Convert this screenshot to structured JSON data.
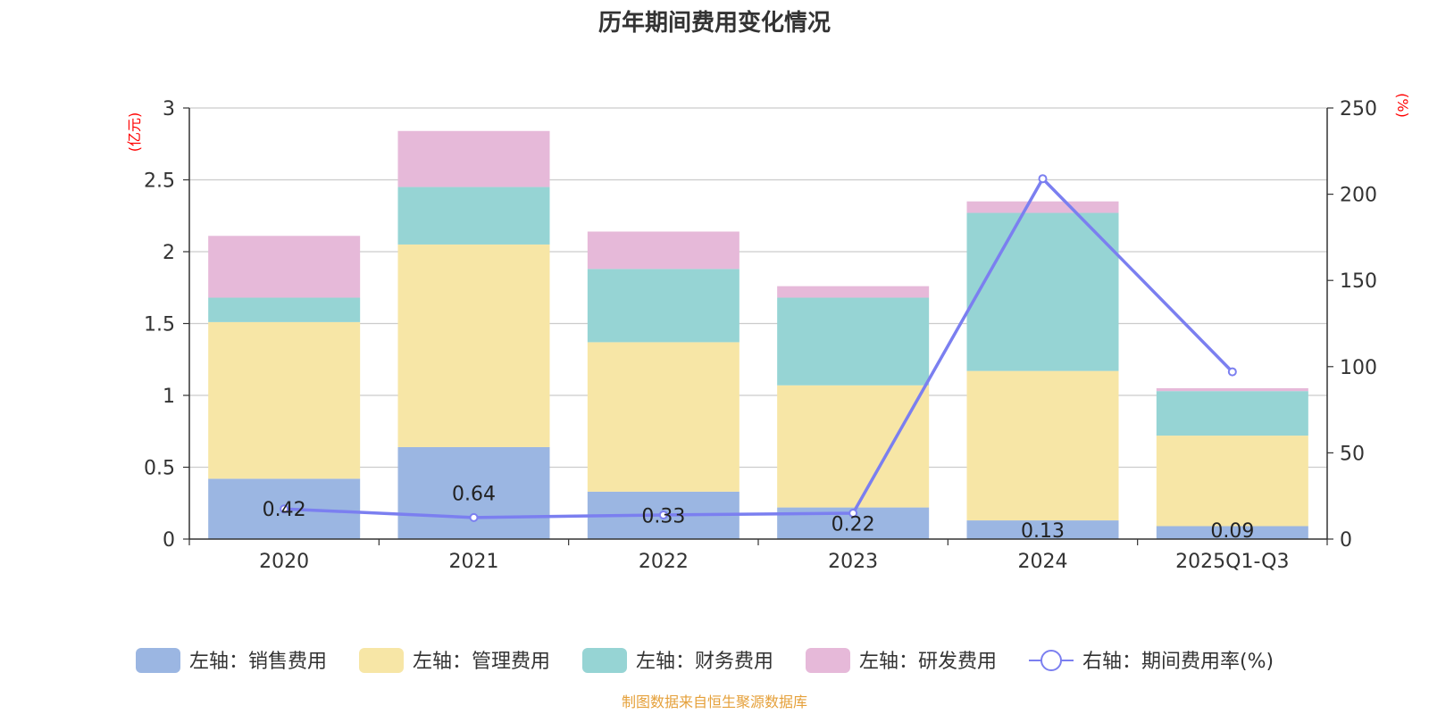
{
  "chart_data": {
    "type": "bar",
    "title": "历年期间费用变化情况",
    "categories": [
      "2020",
      "2021",
      "2022",
      "2023",
      "2024",
      "2025Q1-Q3"
    ],
    "left_axis": {
      "unit": "(亿元)",
      "ylim": [
        0,
        3
      ],
      "ticks": [
        "0",
        "0.5",
        "1",
        "1.5",
        "2",
        "2.5",
        "3"
      ]
    },
    "right_axis": {
      "unit": "(%)",
      "ylim": [
        0,
        250
      ],
      "ticks": [
        "0",
        "50",
        "100",
        "150",
        "200",
        "250"
      ]
    },
    "series": [
      {
        "name": "左轴：销售费用",
        "type": "bar",
        "color": "#9bb6e2",
        "values": [
          0.42,
          0.64,
          0.33,
          0.22,
          0.13,
          0.09
        ],
        "labels": [
          "0.42",
          "0.64",
          "0.33",
          "0.22",
          "0.13",
          "0.09"
        ]
      },
      {
        "name": "左轴：管理费用",
        "type": "bar",
        "color": "#f7e6a6",
        "values": [
          1.09,
          1.41,
          1.04,
          0.85,
          1.04,
          0.63
        ]
      },
      {
        "name": "左轴：财务费用",
        "type": "bar",
        "color": "#96d4d4",
        "values": [
          0.17,
          0.4,
          0.51,
          0.61,
          1.1,
          0.31
        ]
      },
      {
        "name": "左轴：研发费用",
        "type": "bar",
        "color": "#e6b9d9",
        "values": [
          0.43,
          0.39,
          0.26,
          0.08,
          0.08,
          0.02
        ]
      },
      {
        "name": "右轴：期间费用率(%)",
        "type": "line",
        "color": "#7b7ff0",
        "values": [
          17.5,
          12.5,
          14,
          15,
          209,
          97
        ]
      }
    ],
    "grid": true,
    "legend_position": "bottom"
  },
  "source": "制图数据来自恒生聚源数据库",
  "colors": {
    "title": "#333333",
    "axis_unit": "#ff0000",
    "source": "#e5a03a",
    "grid": "#cccccc",
    "axis_line": "#333333"
  }
}
